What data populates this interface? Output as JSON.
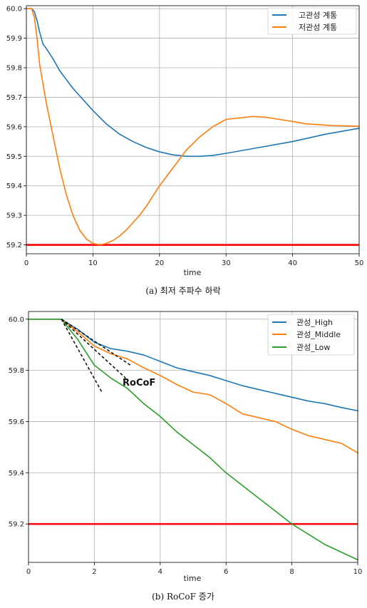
{
  "chart_data": [
    {
      "type": "line",
      "xlabel": "time",
      "caption": "(a) 최저 주파수 하락",
      "xlim": [
        0,
        50
      ],
      "ylim": [
        59.17,
        60.01
      ],
      "xticks": [
        "0",
        "10",
        "20",
        "30",
        "40",
        "50"
      ],
      "yticks": [
        "59.2",
        "59.3",
        "59.4",
        "59.5",
        "59.6",
        "59.7",
        "59.8",
        "59.9",
        "60.0"
      ],
      "grid": true,
      "legend_position": "top-right",
      "threshold": {
        "y": 59.2,
        "color": "#ff0000"
      },
      "series": [
        {
          "name": "고관성 계통",
          "color": "#1f77b4",
          "x": [
            0,
            0.8,
            1.2,
            1.6,
            2,
            2.5,
            3,
            4,
            5,
            6,
            7,
            8,
            9,
            10,
            12,
            14,
            16,
            18,
            20,
            22,
            24,
            26,
            28,
            30,
            35,
            40,
            45,
            50
          ],
          "y": [
            60.0,
            60.0,
            59.99,
            59.96,
            59.92,
            59.88,
            59.865,
            59.83,
            59.79,
            59.76,
            59.73,
            59.705,
            59.68,
            59.655,
            59.61,
            59.575,
            59.55,
            59.53,
            59.515,
            59.505,
            59.5,
            59.5,
            59.503,
            59.51,
            59.53,
            59.55,
            59.575,
            59.595
          ]
        },
        {
          "name": "저관성 계통",
          "color": "#ff7f0e",
          "x": [
            0,
            0.8,
            1.2,
            1.6,
            2,
            3,
            4,
            5,
            6,
            7,
            8,
            9,
            10,
            11,
            12,
            13,
            14,
            15,
            16,
            17,
            18,
            20,
            22,
            24,
            26,
            28,
            30,
            32,
            34,
            36,
            38,
            40,
            42,
            44,
            46,
            48,
            50
          ],
          "y": [
            60.0,
            60.0,
            59.97,
            59.9,
            59.81,
            59.68,
            59.57,
            59.46,
            59.37,
            59.3,
            59.25,
            59.22,
            59.205,
            59.2,
            59.205,
            59.215,
            59.23,
            59.25,
            59.275,
            59.3,
            59.33,
            59.4,
            59.46,
            59.52,
            59.565,
            59.6,
            59.625,
            59.63,
            59.635,
            59.632,
            59.625,
            59.618,
            59.61,
            59.607,
            59.604,
            59.603,
            59.602
          ]
        }
      ]
    },
    {
      "type": "line",
      "xlabel": "time",
      "caption": "(b) RoCoF 증가",
      "xlim": [
        0,
        10
      ],
      "ylim": [
        59.05,
        60.03
      ],
      "xticks": [
        "0",
        "2",
        "4",
        "6",
        "8",
        "10"
      ],
      "yticks": [
        "59.2",
        "59.4",
        "59.6",
        "59.8",
        "60.0"
      ],
      "grid": true,
      "legend_position": "top-right",
      "threshold": {
        "y": 59.2,
        "color": "#ff0000"
      },
      "annotation": "RoCoF",
      "tangent_lines": [
        {
          "x": [
            1.0,
            3.1
          ],
          "y": [
            60.0,
            59.82
          ]
        },
        {
          "x": [
            1.0,
            2.95
          ],
          "y": [
            60.0,
            59.77
          ]
        },
        {
          "x": [
            1.0,
            2.25
          ],
          "y": [
            60.0,
            59.71
          ]
        }
      ],
      "series": [
        {
          "name": "관성_High",
          "color": "#1f77b4",
          "x": [
            0,
            1.0,
            1.5,
            2.0,
            2.5,
            3.0,
            3.5,
            4.0,
            4.5,
            5.0,
            5.5,
            6.0,
            6.5,
            7.0,
            7.5,
            8.0,
            8.5,
            9.0,
            9.5,
            10
          ],
          "y": [
            60.0,
            60.0,
            59.96,
            59.91,
            59.885,
            59.875,
            59.86,
            59.835,
            59.81,
            59.795,
            59.78,
            59.76,
            59.74,
            59.725,
            59.71,
            59.695,
            59.68,
            59.67,
            59.655,
            59.642
          ]
        },
        {
          "name": "관성_Middle",
          "color": "#ff7f0e",
          "x": [
            0,
            1.0,
            1.5,
            2.0,
            2.5,
            3.0,
            3.5,
            4.0,
            4.5,
            5.0,
            5.5,
            6.0,
            6.5,
            7.0,
            7.5,
            8.0,
            8.5,
            9.0,
            9.5,
            10
          ],
          "y": [
            60.0,
            60.0,
            59.95,
            59.895,
            59.865,
            59.845,
            59.81,
            59.78,
            59.745,
            59.715,
            59.705,
            59.67,
            59.63,
            59.615,
            59.6,
            59.57,
            59.545,
            59.53,
            59.515,
            59.478
          ]
        },
        {
          "name": "관성_Low",
          "color": "#2ca02c",
          "x": [
            0,
            1.0,
            1.5,
            2.0,
            2.5,
            3.0,
            3.5,
            4.0,
            4.5,
            5.0,
            5.5,
            6.0,
            6.5,
            7.0,
            7.5,
            8.0,
            8.5,
            9.0,
            9.5,
            10
          ],
          "y": [
            60.0,
            60.0,
            59.92,
            59.82,
            59.77,
            59.73,
            59.67,
            59.62,
            59.56,
            59.51,
            59.46,
            59.4,
            59.35,
            59.3,
            59.25,
            59.2,
            59.16,
            59.12,
            59.09,
            59.06
          ]
        }
      ]
    }
  ]
}
